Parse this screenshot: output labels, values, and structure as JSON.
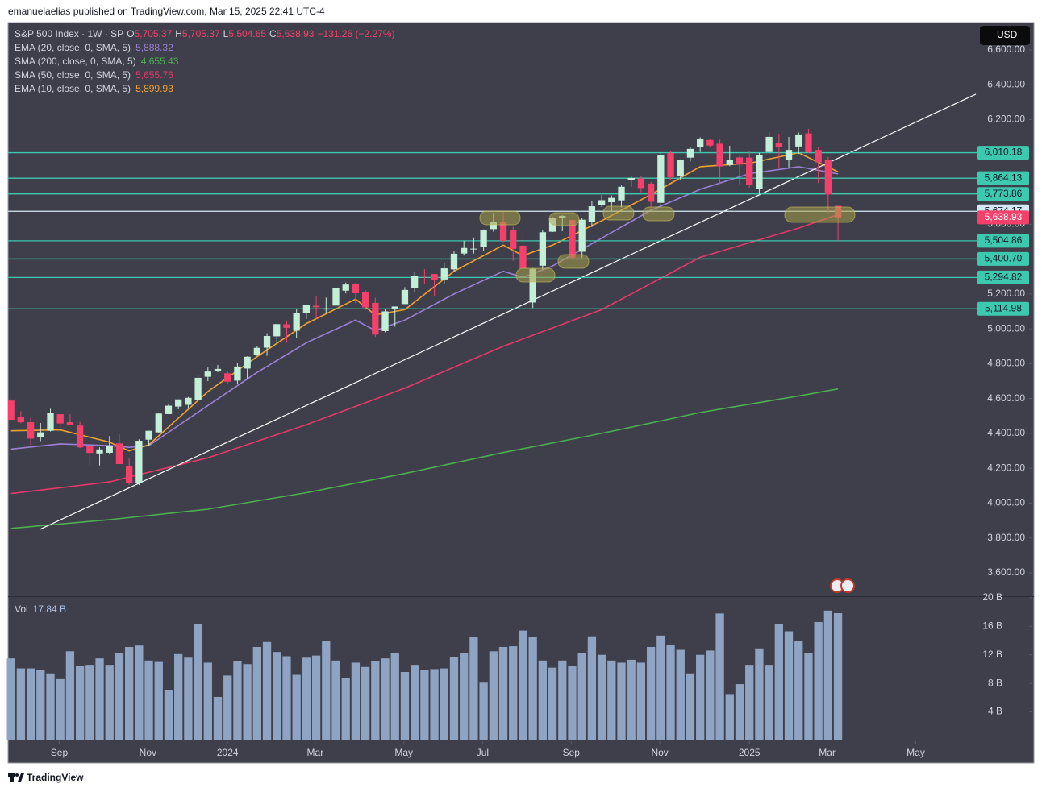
{
  "header": "emanuelaelias published on TradingView.com, Mar 15, 2025 22:41 UTC-4",
  "footer": "TradingView",
  "chart_data": {
    "type": "candlestick",
    "currency": "USD",
    "legend": {
      "symbol": "S&P 500 Index · 1W · SP",
      "letters": [
        "O",
        "H",
        "L",
        "C"
      ],
      "ohlc": [
        "5,705.37",
        "5,705.37",
        "5,504.65",
        "5,638.93"
      ],
      "change": "−131.26 (−2.27%)"
    },
    "up_color": "#c3efd8",
    "down_color": "#f5406b",
    "open": [
      4588,
      4492,
      4464,
      4380,
      4415,
      4510,
      4464,
      4445,
      4328,
      4285,
      4289,
      4343,
      4210,
      4117,
      4364,
      4406,
      4511,
      4554,
      4564,
      4593,
      4725,
      4759,
      4745,
      4703,
      4772,
      4848,
      4892,
      4957,
      5026,
      4989,
      5093,
      5132,
      5111,
      5133,
      5219,
      5258,
      5211,
      5149,
      4987,
      5116,
      5142,
      5233,
      5305,
      5315,
      5283,
      5341,
      5432,
      5460,
      5471,
      5572,
      5614,
      5565,
      5477,
      5151,
      5362,
      5557,
      5637,
      5624,
      5442,
      5615,
      5711,
      5726,
      5737,
      5855,
      5863,
      5833,
      5723,
      6008,
      5874,
      5982,
      6041,
      6083,
      6062,
      5940,
      5983,
      5982,
      5801,
      6014,
      6067,
      5969,
      6046,
      6121,
      6026,
      5968,
      5705.37
    ],
    "high": [
      4595,
      4527,
      4490,
      4460,
      4541,
      4514,
      4511,
      4466,
      4338,
      4320,
      4385,
      4394,
      4256,
      4366,
      4415,
      4520,
      4568,
      4595,
      4609,
      4738,
      4778,
      4793,
      4754,
      4802,
      4842,
      4903,
      4975,
      5030,
      5048,
      5111,
      5140,
      5190,
      5179,
      5262,
      5265,
      5264,
      5222,
      5178,
      5114,
      5128,
      5239,
      5325,
      5342,
      5315,
      5375,
      5447,
      5505,
      5524,
      5570,
      5666,
      5670,
      5585,
      5566,
      5349,
      5564,
      5643,
      5651,
      5626,
      5636,
      5734,
      5767,
      5765,
      5822,
      5878,
      5878,
      5843,
      6012,
      6018,
      5972,
      6044,
      6099,
      6089,
      6085,
      6050,
      5993,
      6022,
      6008,
      6128,
      6120,
      6101,
      6127,
      6147,
      6043,
      5986,
      5705.37
    ],
    "low": [
      4478,
      4458,
      4335,
      4356,
      4411,
      4430,
      4448,
      4316,
      4216,
      4216,
      4284,
      4223,
      4104,
      4103,
      4329,
      4402,
      4510,
      4538,
      4546,
      4593,
      4700,
      4751,
      4682,
      4682,
      4714,
      4845,
      4845,
      4918,
      4920,
      4946,
      5056,
      5056,
      5091,
      5131,
      5203,
      5146,
      5107,
      4953,
      4980,
      5012,
      5142,
      5211,
      5256,
      5191,
      5257,
      5325,
      5420,
      5432,
      5448,
      5557,
      5497,
      5390,
      5305,
      5120,
      5342,
      5555,
      5560,
      5403,
      5406,
      5584,
      5698,
      5674,
      5696,
      5815,
      5783,
      5697,
      5697,
      5854,
      5853,
      5960,
      6014,
      6040,
      5832,
      5933,
      5829,
      5809,
      5773,
      6004,
      5923,
      5923,
      6003,
      6008,
      5837,
      5666,
      5504.65
    ],
    "close": [
      4478,
      4464,
      4370,
      4406,
      4516,
      4457,
      4450,
      4320,
      4288,
      4308,
      4327,
      4224,
      4117,
      4358,
      4415,
      4514,
      4559,
      4595,
      4604,
      4719,
      4755,
      4770,
      4697,
      4784,
      4840,
      4891,
      4959,
      5027,
      5006,
      5089,
      5137,
      5124,
      5117,
      5234,
      5254,
      5204,
      5123,
      4967,
      5100,
      5128,
      5223,
      5304,
      5304,
      5278,
      5347,
      5431,
      5464,
      5460,
      5567,
      5615,
      5505,
      5459,
      5346,
      5344,
      5554,
      5634,
      5648,
      5408,
      5626,
      5703,
      5738,
      5751,
      5815,
      5865,
      5808,
      5729,
      5996,
      5870,
      5969,
      6032,
      6090,
      6051,
      5931,
      5971,
      5942,
      5827,
      5997,
      6101,
      6041,
      6026,
      6115,
      6013,
      5955,
      5770,
      5638.93
    ],
    "last_label": "5,638.93",
    "xlim": [
      -0.3,
      103.9
    ],
    "xticks": [
      {
        "value": 4.9,
        "label": "Sep"
      },
      {
        "value": 13.9,
        "label": "Nov"
      },
      {
        "value": 22,
        "label": "2024"
      },
      {
        "value": 30.9,
        "label": "Mar"
      },
      {
        "value": 39.9,
        "label": "May"
      },
      {
        "value": 47.9,
        "label": "Jul"
      },
      {
        "value": 56.9,
        "label": "Sep"
      },
      {
        "value": 65.9,
        "label": "Nov"
      },
      {
        "value": 75,
        "label": "2025"
      },
      {
        "value": 82.9,
        "label": "Mar"
      },
      {
        "value": 91.9,
        "label": "May"
      }
    ],
    "ylim": [
      3466,
      6757
    ],
    "yticks": [
      {
        "value": 3600,
        "label": "3,600.00"
      },
      {
        "value": 3800,
        "label": "3,800.00"
      },
      {
        "value": 4000,
        "label": "4,000.00"
      },
      {
        "value": 4200,
        "label": "4,200.00"
      },
      {
        "value": 4400,
        "label": "4,400.00"
      },
      {
        "value": 4600,
        "label": "4,600.00"
      },
      {
        "value": 4800,
        "label": "4,800.00"
      },
      {
        "value": 5000,
        "label": "5,000.00"
      },
      {
        "value": 5200,
        "label": "5,200.00"
      },
      {
        "value": 5600,
        "label": "5,600.00"
      },
      {
        "value": 6200,
        "label": "6,200.00"
      },
      {
        "value": 6400,
        "label": "6,400.00"
      },
      {
        "value": 6600,
        "label": "6,600.00"
      }
    ],
    "indicators": [
      {
        "name": "EMA (20, close, 0, SMA, 5)",
        "value_label": "5,888.32",
        "color": "#9b80d6",
        "x": [
          0,
          5,
          10,
          12,
          14,
          20,
          25,
          30,
          35,
          37,
          40,
          45,
          50,
          52,
          55,
          60,
          65,
          70,
          75,
          80,
          84
        ],
        "values": [
          4310,
          4340,
          4330,
          4320,
          4330,
          4560,
          4750,
          4920,
          5050,
          4990,
          5050,
          5200,
          5330,
          5295,
          5360,
          5520,
          5680,
          5800,
          5890,
          5930,
          5888.32
        ]
      },
      {
        "name": "SMA (200, close, 0, SMA, 5)",
        "value_label": "4,655.43",
        "color": "#4caf50",
        "x": [
          0,
          10,
          20,
          30,
          40,
          50,
          60,
          70,
          80,
          84
        ],
        "values": [
          3855,
          3905,
          3965,
          4060,
          4170,
          4290,
          4400,
          4520,
          4615,
          4655.43
        ]
      },
      {
        "name": "SMA (50, close, 0, SMA, 5)",
        "value_label": "5,655.76",
        "color": "#e8386a",
        "x": [
          0,
          10,
          20,
          30,
          40,
          50,
          60,
          70,
          80,
          84
        ],
        "values": [
          4055,
          4122,
          4260,
          4450,
          4660,
          4900,
          5110,
          5410,
          5578,
          5655.76
        ]
      },
      {
        "name": "EMA (10, close, 0, SMA, 5)",
        "value_label": "5,899.93",
        "color": "#f0a030",
        "x": [
          0,
          5,
          10,
          12,
          14,
          20,
          25,
          30,
          35,
          37,
          40,
          45,
          50,
          52,
          55,
          60,
          65,
          70,
          75,
          80,
          84
        ],
        "values": [
          4415,
          4420,
          4350,
          4300,
          4335,
          4640,
          4840,
          5030,
          5170,
          5080,
          5110,
          5330,
          5480,
          5420,
          5480,
          5620,
          5770,
          5930,
          5950,
          6010,
          5899.93
        ]
      }
    ],
    "levels": [
      {
        "value": 6010.18,
        "label": "6,010.18",
        "color": "#3cc9b0"
      },
      {
        "value": 5864.13,
        "label": "5,864.13",
        "color": "#3cc9b0"
      },
      {
        "value": 5773.86,
        "label": "5,773.86",
        "color": "#3cc9b0"
      },
      {
        "value": 5674.17,
        "label": "5,674.17",
        "color": "#d3eaf6"
      },
      {
        "value": 5504.86,
        "label": "5,504.86",
        "color": "#3cc9b0"
      },
      {
        "value": 5400.7,
        "label": "5,400.70",
        "color": "#3cc9b0"
      },
      {
        "value": 5294.82,
        "label": "5,294.82",
        "color": "#3cc9b0"
      },
      {
        "value": 5114.98,
        "label": "5,114.98",
        "color": "#3cc9b0"
      }
    ],
    "trendline": {
      "x": [
        2.95,
        98.0
      ],
      "values": [
        3850,
        6346
      ],
      "color": "#ffffff"
    },
    "volume": {
      "name": "Vol",
      "value_label": "17.84 B",
      "color": "#8fa3c3",
      "values": [
        11.5,
        10.1,
        10.1,
        9.9,
        9.4,
        8.6,
        12.5,
        10.5,
        10.6,
        11.5,
        10.6,
        12.2,
        13.1,
        13.3,
        11.2,
        11.0,
        7.0,
        12.1,
        11.6,
        16.3,
        10.9,
        6.1,
        9.1,
        11.1,
        10.7,
        13.1,
        13.8,
        12.4,
        11.8,
        9.2,
        11.6,
        11.9,
        14.0,
        11.2,
        8.7,
        10.9,
        10.3,
        11.1,
        11.5,
        12.2,
        9.6,
        10.6,
        9.9,
        10.0,
        10.1,
        11.7,
        12.2,
        14.5,
        8.1,
        12.5,
        13.1,
        13.2,
        15.4,
        14.5,
        11.2,
        10.2,
        11.2,
        10.4,
        12.2,
        14.6,
        12.0,
        11.2,
        10.9,
        11.3,
        10.9,
        13.1,
        14.7,
        13.4,
        12.7,
        9.4,
        12.0,
        12.6,
        17.8,
        6.5,
        7.9,
        10.6,
        12.9,
        10.6,
        16.3,
        15.3,
        13.9,
        12.3,
        16.6,
        18.2,
        17.84
      ],
      "ylim": [
        0,
        20.1
      ],
      "yticks": [
        {
          "value": 4,
          "label": "4 B"
        },
        {
          "value": 8,
          "label": "8 B"
        },
        {
          "value": 12,
          "label": "12 B"
        },
        {
          "value": 16,
          "label": "16 B"
        },
        {
          "value": 20,
          "label": "20 B"
        }
      ]
    }
  }
}
